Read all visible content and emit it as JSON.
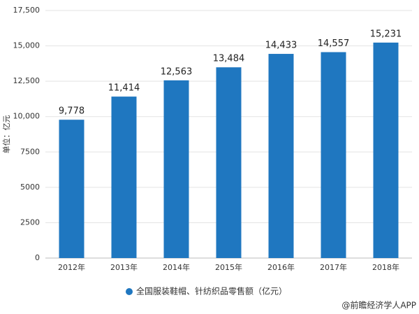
{
  "chart_data": {
    "type": "bar",
    "y_label": "单位：亿元",
    "categories": [
      "2012年",
      "2013年",
      "2014年",
      "2015年",
      "2016年",
      "2017年",
      "2018年"
    ],
    "series": [
      {
        "name": "全国服装鞋帽、针纺织品零售额（亿元）",
        "color": "#1f77c0",
        "values": [
          9778,
          11414,
          12563,
          13484,
          14433,
          14557,
          15231
        ],
        "value_labels": [
          "9,778",
          "11,414",
          "12,563",
          "13,484",
          "14,433",
          "14,557",
          "15,231"
        ]
      }
    ],
    "ylim": [
      0,
      17500
    ],
    "yticks": [
      0,
      2500,
      5000,
      7500,
      {
        "value": 10000,
        "label": "10,000"
      },
      {
        "value": 12500,
        "label": "12,500"
      },
      {
        "value": 15000,
        "label": "15,000"
      },
      {
        "value": 17500,
        "label": "17,500"
      }
    ],
    "grid": true,
    "legend": "bottom",
    "source": "@前瞻经济学人APP"
  }
}
